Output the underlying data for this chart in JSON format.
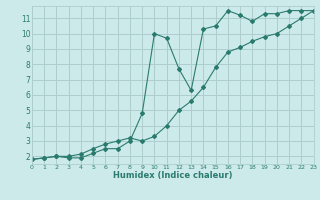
{
  "line1_x": [
    0,
    1,
    2,
    3,
    4,
    5,
    6,
    7,
    8,
    9,
    10,
    11,
    12,
    13,
    14,
    15,
    16,
    17,
    18,
    19,
    20,
    21,
    22,
    23
  ],
  "line1_y": [
    1.8,
    1.9,
    2.0,
    1.9,
    1.9,
    2.2,
    2.5,
    2.5,
    3.0,
    4.8,
    10.0,
    9.7,
    7.7,
    6.3,
    10.3,
    10.5,
    11.5,
    11.2,
    10.8,
    11.3,
    11.3,
    11.5,
    11.5,
    11.5
  ],
  "line2_x": [
    0,
    1,
    2,
    3,
    4,
    5,
    6,
    7,
    8,
    9,
    10,
    11,
    12,
    13,
    14,
    15,
    16,
    17,
    18,
    19,
    20,
    21,
    22,
    23
  ],
  "line2_y": [
    1.8,
    1.9,
    2.0,
    2.0,
    2.15,
    2.5,
    2.8,
    3.0,
    3.2,
    3.0,
    3.3,
    4.0,
    5.0,
    5.6,
    6.5,
    7.8,
    8.8,
    9.1,
    9.5,
    9.8,
    10.0,
    10.5,
    11.0,
    11.5
  ],
  "color": "#2a7b6e",
  "bg_color": "#cdeaea",
  "grid_color": "#aecece",
  "xlabel": "Humidex (Indice chaleur)",
  "xlim": [
    0,
    23
  ],
  "ylim": [
    1.5,
    11.8
  ],
  "xticks": [
    0,
    1,
    2,
    3,
    4,
    5,
    6,
    7,
    8,
    9,
    10,
    11,
    12,
    13,
    14,
    15,
    16,
    17,
    18,
    19,
    20,
    21,
    22,
    23
  ],
  "yticks": [
    2,
    3,
    4,
    5,
    6,
    7,
    8,
    9,
    10,
    11
  ]
}
